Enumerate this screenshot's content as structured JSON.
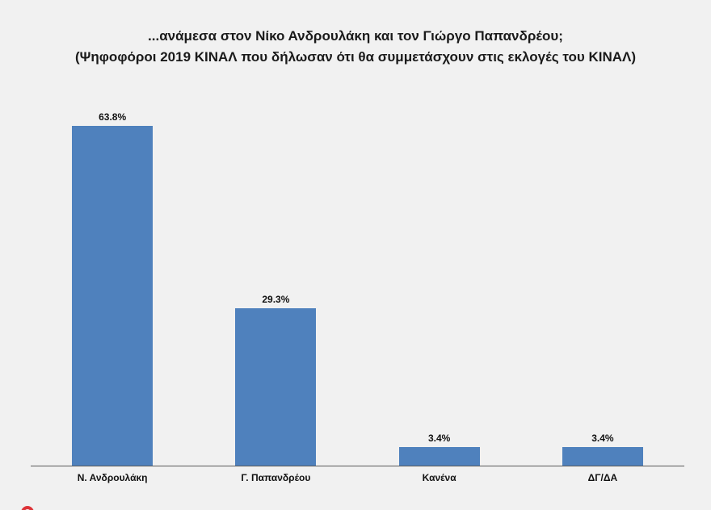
{
  "title": {
    "line1": "...ανάμεσα στον Νίκο Ανδρουλάκη και τον Γιώργο Παπανδρέου;",
    "line2": "(Ψηφοφόροι 2019 ΚΙΝΑΛ που δήλωσαν ότι θα συμμετάσχουν στις εκλογές του ΚΙΝΑΛ)"
  },
  "chart_data": {
    "type": "bar",
    "title": "...ανάμεσα στον Νίκο Ανδρουλάκη και τον Γιώργο Παπανδρέου;",
    "subtitle": "(Ψηφοφόροι 2019 ΚΙΝΑΛ που δήλωσαν ότι θα συμμετάσχουν στις εκλογές του ΚΙΝΑΛ)",
    "categories": [
      "Ν. Ανδρουλάκη",
      "Γ. Παπανδρέου",
      "Κανένα",
      "ΔΓ/ΔΑ"
    ],
    "values": [
      63.8,
      29.3,
      3.4,
      3.4
    ],
    "value_labels": [
      "63.8%",
      "29.3%",
      "3.4%",
      "3.4%"
    ],
    "xlabel": "",
    "ylabel": "",
    "ylim": [
      0,
      66
    ],
    "grid": false,
    "legend": false,
    "bar_color": "#4f81bd",
    "background": "#f1f1f1"
  },
  "colors": {
    "bar": "#4f81bd",
    "background": "#f1f1f1",
    "text": "#111111",
    "axis": "#595959",
    "logo_red": "#dd3338"
  }
}
